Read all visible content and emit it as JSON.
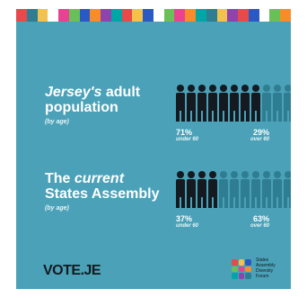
{
  "colors": {
    "background": "#4aa1b8",
    "dark_person": "#141a1f",
    "light_person": "#2f7d91",
    "mosaic": [
      "#e54b4b",
      "#2f7d91",
      "#f2c14e",
      "#ffffff",
      "#e84393",
      "#6bbf59",
      "#2b59c3",
      "#f78c2b",
      "#8e44ad",
      "#00a6a6",
      "#e54b4b",
      "#f2c14e",
      "#2b59c3",
      "#ffffff",
      "#6bbf59",
      "#e84393",
      "#f78c2b",
      "#00a6a6",
      "#2f7d91",
      "#f2c14e",
      "#8e44ad",
      "#e54b4b",
      "#2b59c3",
      "#ffffff",
      "#6bbf59",
      "#f78c2b"
    ],
    "forum_mark": [
      "#e54b4b",
      "#f2c14e",
      "#2b59c3",
      "#6bbf59",
      "#e84393",
      "#f78c2b",
      "#00a6a6",
      "#8e44ad",
      "#2f7d91"
    ]
  },
  "block1": {
    "title_em": "Jersey's",
    "title_rest1": " adult",
    "title_line2": "population",
    "subtitle": "(by age)",
    "left_pct": "71%",
    "left_caption": "under 60",
    "right_pct": "29%",
    "right_caption": "over 60",
    "dark_count": 8,
    "total_icons": 11
  },
  "block2": {
    "title_pre": "The ",
    "title_em": "current",
    "title_line2": "States Assembly",
    "subtitle": "(by age)",
    "left_pct": "37%",
    "left_caption": "under 60",
    "right_pct": "63%",
    "right_caption": "over 60",
    "dark_count": 4,
    "total_icons": 11
  },
  "footer": {
    "logo_text": "VOTE.JE",
    "forum_lines": [
      "States",
      "Assembly",
      "Diversity",
      "Forum"
    ]
  }
}
